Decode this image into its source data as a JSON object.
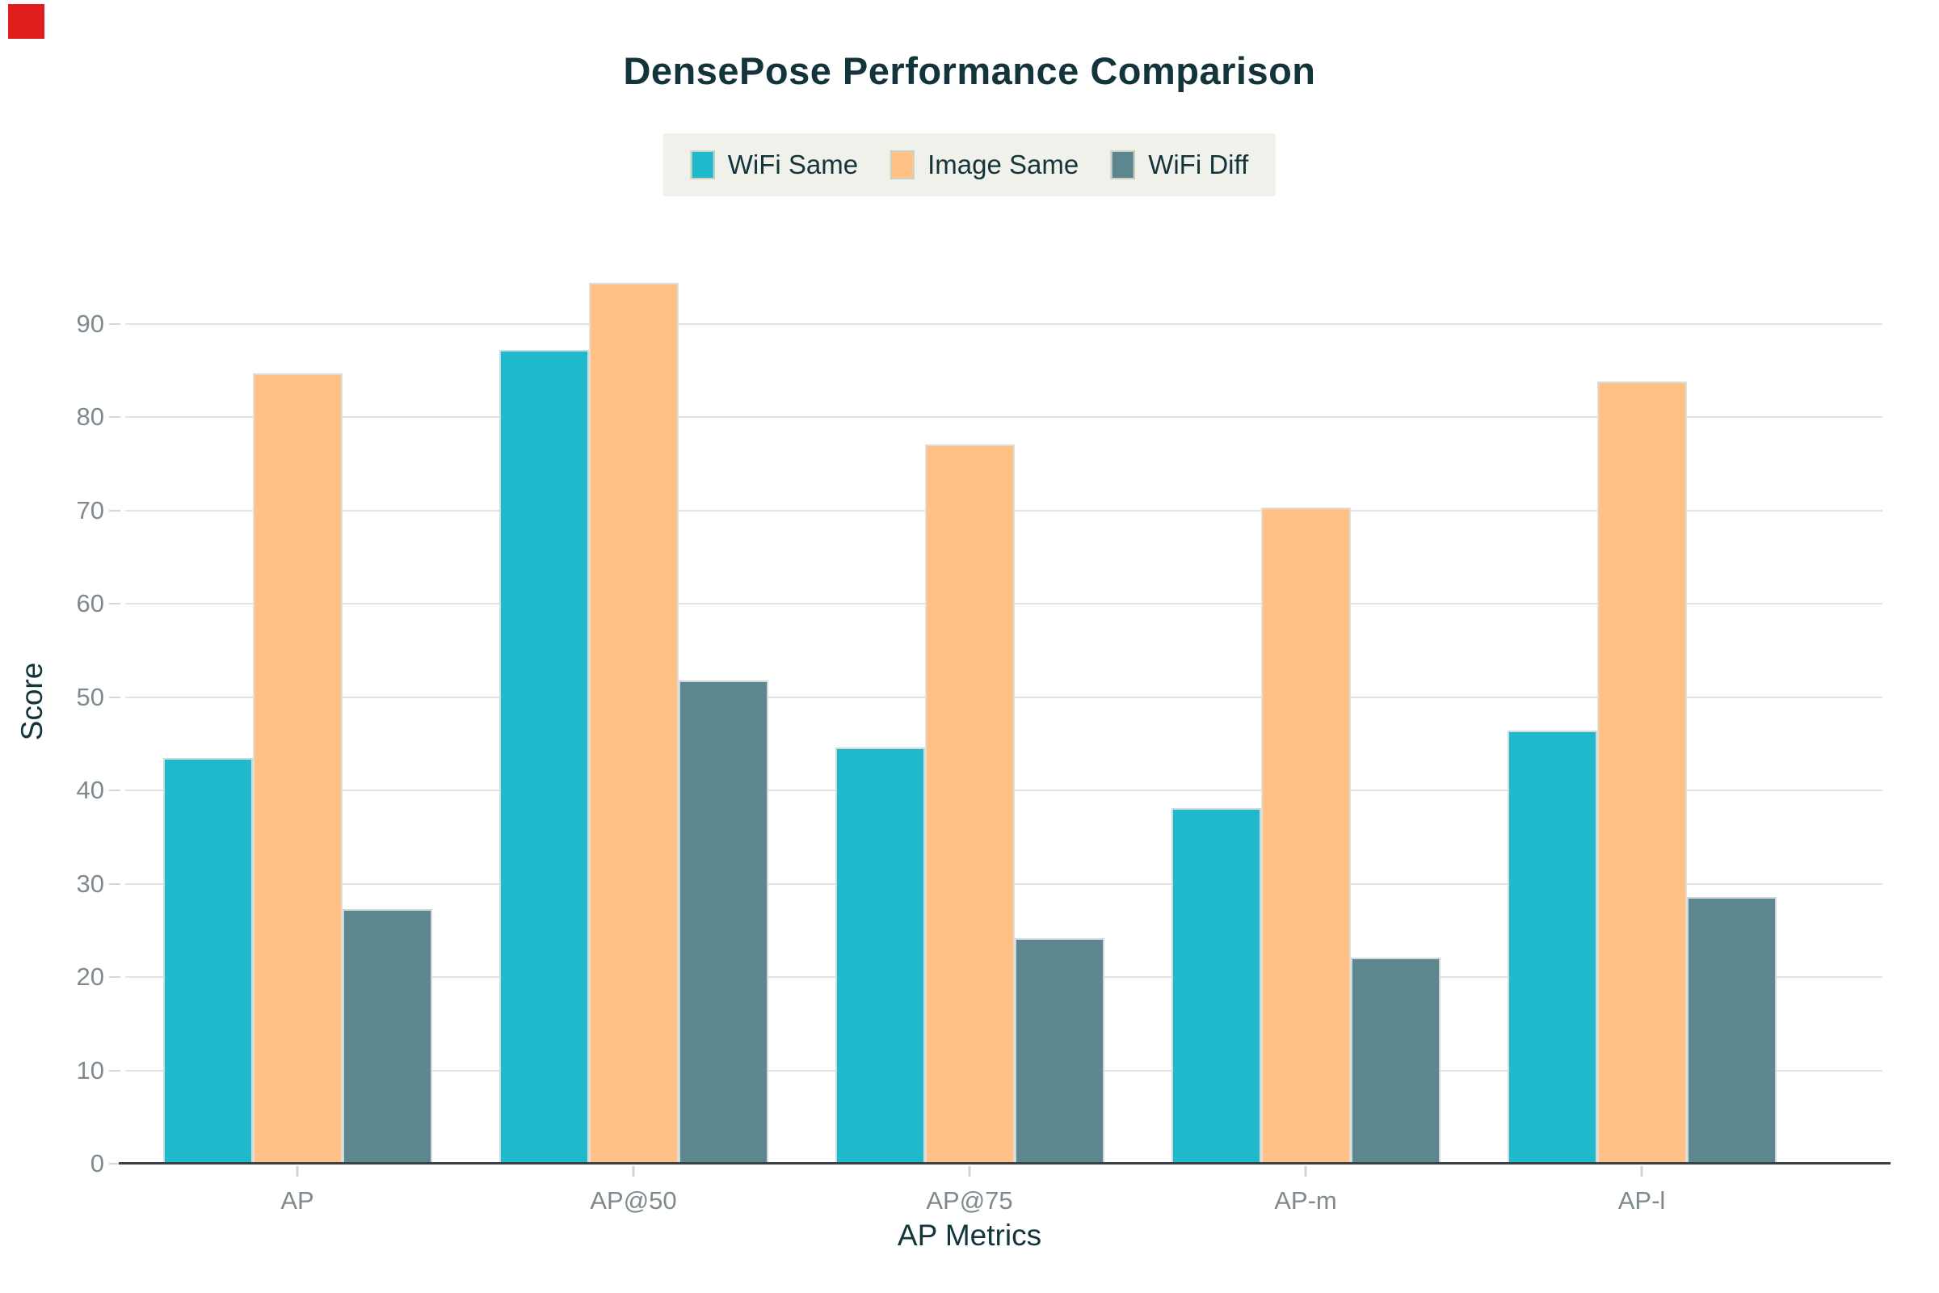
{
  "chart_data": {
    "type": "bar",
    "title": "DensePose Performance Comparison",
    "xlabel": "AP Metrics",
    "ylabel": "Score",
    "categories": [
      "AP",
      "AP@50",
      "AP@75",
      "AP-m",
      "AP-l"
    ],
    "series": [
      {
        "name": "WiFi Same",
        "color": "#1FB8CD",
        "values": [
          43.5,
          87.2,
          44.6,
          38.1,
          46.4
        ]
      },
      {
        "name": "Image Same",
        "color": "#FFC185",
        "values": [
          84.7,
          94.4,
          77.1,
          70.3,
          83.8
        ]
      },
      {
        "name": "WiFi Diff",
        "color": "#5D878F",
        "values": [
          27.3,
          51.8,
          24.2,
          22.1,
          28.6
        ]
      }
    ],
    "ylim": [
      0,
      95
    ],
    "yticks": [
      0,
      10,
      20,
      30,
      40,
      50,
      60,
      70,
      80,
      90
    ],
    "grid": true,
    "legend_position": "top-center"
  },
  "legend": {
    "items": [
      {
        "label": "WiFi Same",
        "color": "#1FB8CD"
      },
      {
        "label": "Image Same",
        "color": "#FFC185"
      },
      {
        "label": "WiFi Diff",
        "color": "#5D878F"
      }
    ],
    "background": "#F0F1EA"
  },
  "colors": {
    "title_text": "#13343B",
    "axis_title_text": "#13343B",
    "tick_label_text": "#7E8A8E",
    "gridline": "#E3E3E3",
    "axis_line": "#3A4144",
    "tick_dash": "#D6D6D6",
    "corner_marker": "#E01E1E",
    "background": "#FFFFFF"
  }
}
